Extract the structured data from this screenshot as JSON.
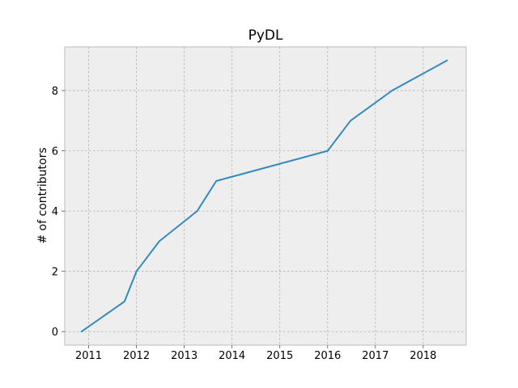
{
  "chart_data": {
    "type": "line",
    "title": "PyDL",
    "xlabel": "",
    "ylabel": "# of contributors",
    "xlim": [
      2010.5,
      2018.9
    ],
    "ylim": [
      -0.45,
      9.45
    ],
    "xticks": [
      2011,
      2012,
      2013,
      2014,
      2015,
      2016,
      2017,
      2018
    ],
    "xtick_labels": [
      "2011",
      "2012",
      "2013",
      "2014",
      "2015",
      "2016",
      "2017",
      "2018"
    ],
    "yticks": [
      0,
      2,
      4,
      6,
      8
    ],
    "ytick_labels": [
      "0",
      "2",
      "4",
      "6",
      "8"
    ],
    "grid": true,
    "line_color": "#348abd",
    "background_color": "#eeeeee",
    "series": [
      {
        "x": [
          2010.85,
          2011.75,
          2012.0,
          2012.48,
          2013.27,
          2013.67,
          2016.0,
          2016.48,
          2017.35,
          2018.5
        ],
        "y": [
          0,
          1,
          2,
          3,
          4,
          5,
          6,
          7,
          8,
          9
        ]
      }
    ]
  }
}
